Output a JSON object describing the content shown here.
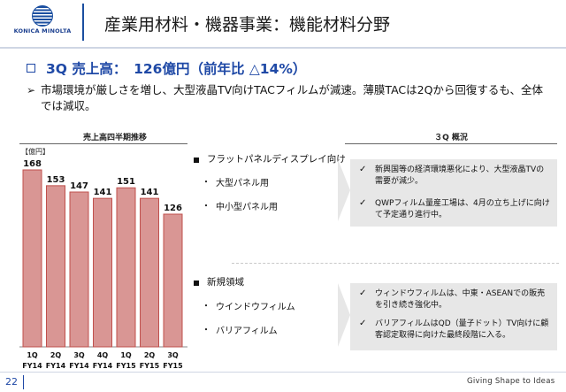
{
  "header": {
    "logo_text": "KONICA MINOLTA",
    "title": "産業用材料・機器事業：機能材料分野"
  },
  "headline": {
    "text": "3Q 売上高：　126億円（前年比 △14%）",
    "summary": "市場環境が厳しさを増し、大型液晶TV向けTACフィルムが減速。薄膜TACは2Qから回復するも、全体では減収。"
  },
  "chart_data": {
    "type": "bar",
    "title": "売上高四半期推移",
    "unit_label": "【億円】",
    "categories": [
      {
        "q": "1Q",
        "fy": "FY14"
      },
      {
        "q": "2Q",
        "fy": "FY14"
      },
      {
        "q": "3Q",
        "fy": "FY14"
      },
      {
        "q": "4Q",
        "fy": "FY14"
      },
      {
        "q": "1Q",
        "fy": "FY15"
      },
      {
        "q": "2Q",
        "fy": "FY15"
      },
      {
        "q": "3Q",
        "fy": "FY15"
      }
    ],
    "values": [
      168,
      153,
      147,
      141,
      151,
      141,
      126
    ],
    "value_labels": [
      "168",
      "153",
      "147",
      "141",
      "151",
      "141",
      "126"
    ],
    "ylim": [
      0,
      168
    ],
    "bar_color": "#d99694",
    "bar_border": "#c0504d",
    "grid": false
  },
  "overview": {
    "title": "３Q 概況",
    "segments": [
      {
        "label": "フラットパネルディスプレイ向け",
        "items": [
          "大型パネル用",
          "中小型パネル用"
        ],
        "notes": [
          "新興国等の経済環境悪化により、大型液晶TVの需要が減少。",
          "QWPフィルム量産工場は、4月の立ち上げに向けて予定通り進行中。"
        ]
      },
      {
        "label": "新規領域",
        "items": [
          "ウインドウフィルム",
          "バリアフィルム"
        ],
        "notes": [
          "ウィンドウフィルムは、中東・ASEANでの販売を引き続き強化中。",
          "バリアフィルムはQD（量子ドット）TV向けに顧客認定取得に向けた最終段階に入る。"
        ]
      }
    ]
  },
  "footer": {
    "page_number": "22",
    "tagline": "Giving Shape to Ideas"
  },
  "colors": {
    "brand_blue": "#1f49a6",
    "bar_fill": "#d99694",
    "panel_gray": "#e7e7e7"
  }
}
